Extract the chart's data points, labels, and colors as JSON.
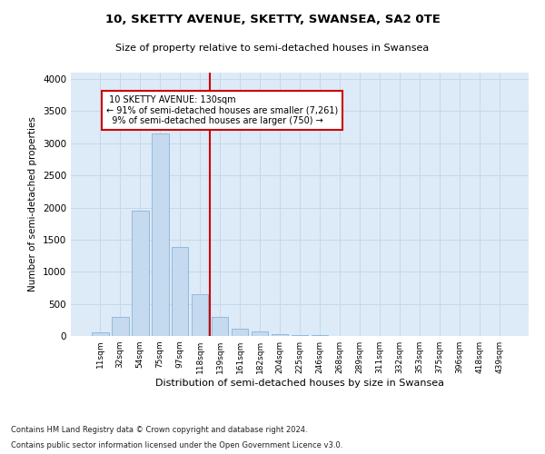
{
  "title": "10, SKETTY AVENUE, SKETTY, SWANSEA, SA2 0TE",
  "subtitle": "Size of property relative to semi-detached houses in Swansea",
  "xlabel": "Distribution of semi-detached houses by size in Swansea",
  "ylabel": "Number of semi-detached properties",
  "footer1": "Contains HM Land Registry data © Crown copyright and database right 2024.",
  "footer2": "Contains public sector information licensed under the Open Government Licence v3.0.",
  "bar_color": "#c5d9ef",
  "bar_edge_color": "#7aadd4",
  "grid_color": "#c8d8e8",
  "background_color": "#ddeaf7",
  "property_label": "10 SKETTY AVENUE: 130sqm",
  "pct_smaller": 91,
  "count_smaller": 7261,
  "pct_larger": 9,
  "count_larger": 750,
  "categories": [
    "11sqm",
    "32sqm",
    "54sqm",
    "75sqm",
    "97sqm",
    "118sqm",
    "139sqm",
    "161sqm",
    "182sqm",
    "204sqm",
    "225sqm",
    "246sqm",
    "268sqm",
    "289sqm",
    "311sqm",
    "332sqm",
    "353sqm",
    "375sqm",
    "396sqm",
    "418sqm",
    "439sqm"
  ],
  "values": [
    50,
    300,
    1950,
    3150,
    1380,
    650,
    290,
    120,
    75,
    30,
    15,
    8,
    4,
    2,
    1,
    0,
    0,
    0,
    0,
    0,
    0
  ],
  "ylim": [
    0,
    4100
  ],
  "yticks": [
    0,
    500,
    1000,
    1500,
    2000,
    2500,
    3000,
    3500,
    4000
  ],
  "vline_x": 5.5,
  "red_line_color": "#cc0000",
  "annotation_color": "#cc0000"
}
